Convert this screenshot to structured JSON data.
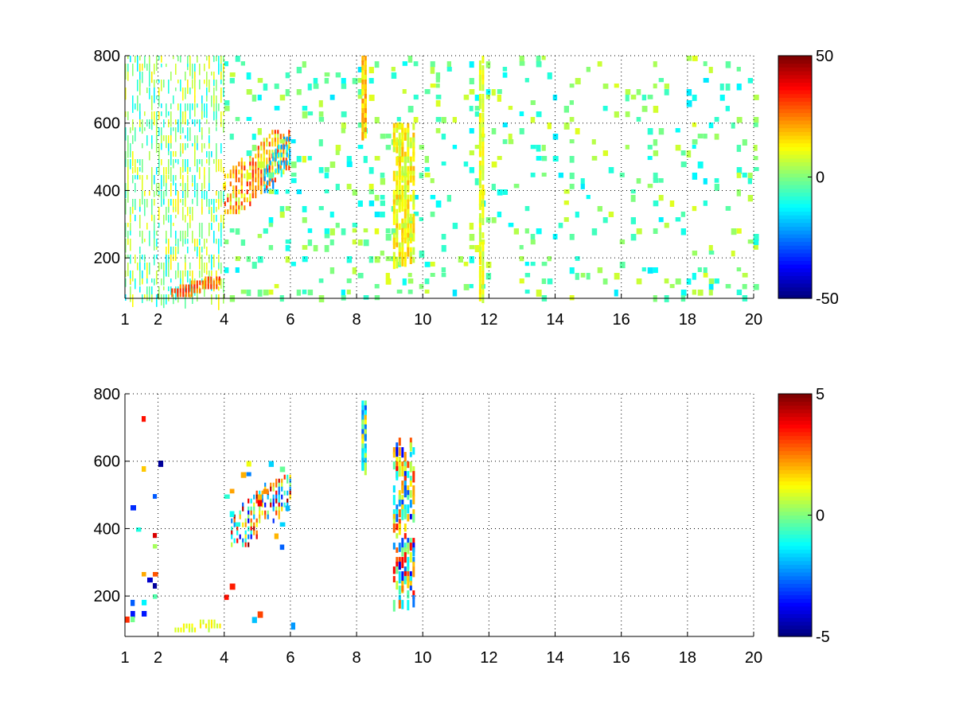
{
  "chart_data": [
    {
      "type": "heatmap",
      "name": "top-panel",
      "xlim": [
        1,
        20
      ],
      "ylim": [
        80,
        800
      ],
      "xticks": [
        1,
        2,
        4,
        6,
        8,
        10,
        12,
        14,
        16,
        18,
        20
      ],
      "xtick_labels": [
        "1",
        "2",
        "4",
        "6",
        "8",
        "10",
        "12",
        "14",
        "16",
        "18",
        "20"
      ],
      "yticks": [
        200,
        400,
        600,
        800
      ],
      "ytick_labels": [
        "200",
        "400",
        "600",
        "800"
      ],
      "grid": true,
      "colorbar": {
        "colormap": "jet",
        "min": -50,
        "max": 50,
        "ticks": [
          50,
          0,
          -50
        ],
        "tick_labels": [
          "50",
          "0",
          "-50"
        ]
      },
      "features": [
        {
          "kind": "dense-scatter",
          "x": [
            1,
            4
          ],
          "y": [
            80,
            800
          ],
          "density": 0.45,
          "value": [
            -15,
            15
          ]
        },
        {
          "kind": "ridge",
          "x": [
            2.4,
            3.9
          ],
          "y": [
            95,
            145
          ],
          "value": [
            20,
            35
          ],
          "density": 0.9
        },
        {
          "kind": "blob",
          "x": [
            4,
            6
          ],
          "y": [
            340,
            580
          ],
          "value": [
            5,
            35
          ],
          "density": 0.75
        },
        {
          "kind": "blob",
          "x": [
            5.2,
            6
          ],
          "y": [
            400,
            560
          ],
          "value": [
            -25,
            -10
          ],
          "density": 0.55
        },
        {
          "kind": "sparse-scatter",
          "x": [
            4,
            20
          ],
          "y": [
            80,
            800
          ],
          "density": 0.12,
          "value": [
            -15,
            10
          ]
        },
        {
          "kind": "stripe",
          "x": [
            8.15,
            8.3
          ],
          "y": [
            560,
            800
          ],
          "value": [
            10,
            25
          ],
          "density": 0.9
        },
        {
          "kind": "stripe",
          "x": [
            9.1,
            9.7
          ],
          "y": [
            200,
            600
          ],
          "value": [
            5,
            20
          ],
          "density": 0.65
        },
        {
          "kind": "stripe",
          "x": [
            11.7,
            11.85
          ],
          "y": [
            80,
            800
          ],
          "value": [
            5,
            15
          ],
          "density": 0.75
        }
      ]
    },
    {
      "type": "heatmap",
      "name": "bottom-panel",
      "xlim": [
        1,
        20
      ],
      "ylim": [
        80,
        800
      ],
      "xticks": [
        1,
        2,
        4,
        6,
        8,
        10,
        12,
        14,
        16,
        18,
        20
      ],
      "xtick_labels": [
        "1",
        "2",
        "4",
        "6",
        "8",
        "10",
        "12",
        "14",
        "16",
        "18",
        "20"
      ],
      "yticks": [
        200,
        400,
        600,
        800
      ],
      "ytick_labels": [
        "200",
        "400",
        "600",
        "800"
      ],
      "grid": true,
      "colorbar": {
        "colormap": "jet",
        "min": -5,
        "max": 5,
        "ticks": [
          5,
          0,
          -5
        ],
        "tick_labels": [
          "5",
          "0",
          "-5"
        ]
      },
      "features": [
        {
          "kind": "sparse-scatter",
          "x": [
            1,
            2.1
          ],
          "y": [
            100,
            800
          ],
          "density": 0.07,
          "value": [
            -5,
            5
          ]
        },
        {
          "kind": "ridge",
          "x": [
            2.5,
            3.9
          ],
          "y": [
            95,
            130
          ],
          "value": [
            0.5,
            1.5
          ],
          "density": 0.6
        },
        {
          "kind": "blob",
          "x": [
            4.2,
            6
          ],
          "y": [
            350,
            560
          ],
          "value": [
            -4,
            5
          ],
          "density": 0.55
        },
        {
          "kind": "stripe",
          "x": [
            8.15,
            8.3
          ],
          "y": [
            570,
            780
          ],
          "value": [
            -3,
            2
          ],
          "density": 0.85
        },
        {
          "kind": "stripe",
          "x": [
            9.1,
            9.7
          ],
          "y": [
            180,
            670
          ],
          "value": [
            -4,
            4
          ],
          "density": 0.4
        },
        {
          "kind": "sparse-scatter",
          "x": [
            4,
            6.5
          ],
          "y": [
            120,
            650
          ],
          "density": 0.04,
          "value": [
            -3,
            4
          ]
        }
      ]
    }
  ]
}
